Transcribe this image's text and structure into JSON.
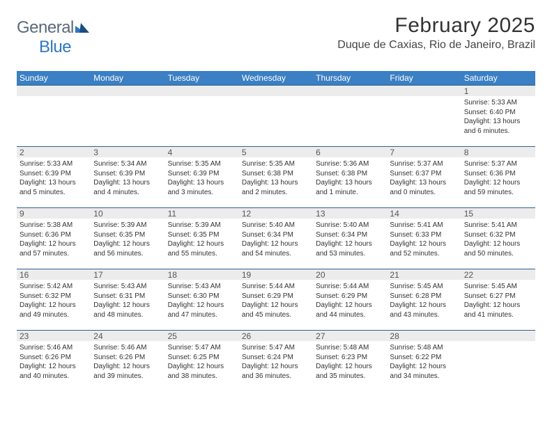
{
  "logo": {
    "general": "General",
    "blue": "Blue"
  },
  "title": "February 2025",
  "location": "Duque de Caxias, Rio de Janeiro, Brazil",
  "colors": {
    "header_bg": "#3b7fc4",
    "header_text": "#ffffff",
    "border": "#2e5f8f",
    "daynum_bg": "#ececec",
    "logo_gray": "#5a6a7a",
    "logo_blue": "#2e78c0"
  },
  "dayNames": [
    "Sunday",
    "Monday",
    "Tuesday",
    "Wednesday",
    "Thursday",
    "Friday",
    "Saturday"
  ],
  "weeks": [
    [
      {
        "n": "",
        "sr": "",
        "ss": "",
        "dl": ""
      },
      {
        "n": "",
        "sr": "",
        "ss": "",
        "dl": ""
      },
      {
        "n": "",
        "sr": "",
        "ss": "",
        "dl": ""
      },
      {
        "n": "",
        "sr": "",
        "ss": "",
        "dl": ""
      },
      {
        "n": "",
        "sr": "",
        "ss": "",
        "dl": ""
      },
      {
        "n": "",
        "sr": "",
        "ss": "",
        "dl": ""
      },
      {
        "n": "1",
        "sr": "Sunrise: 5:33 AM",
        "ss": "Sunset: 6:40 PM",
        "dl": "Daylight: 13 hours and 6 minutes."
      }
    ],
    [
      {
        "n": "2",
        "sr": "Sunrise: 5:33 AM",
        "ss": "Sunset: 6:39 PM",
        "dl": "Daylight: 13 hours and 5 minutes."
      },
      {
        "n": "3",
        "sr": "Sunrise: 5:34 AM",
        "ss": "Sunset: 6:39 PM",
        "dl": "Daylight: 13 hours and 4 minutes."
      },
      {
        "n": "4",
        "sr": "Sunrise: 5:35 AM",
        "ss": "Sunset: 6:39 PM",
        "dl": "Daylight: 13 hours and 3 minutes."
      },
      {
        "n": "5",
        "sr": "Sunrise: 5:35 AM",
        "ss": "Sunset: 6:38 PM",
        "dl": "Daylight: 13 hours and 2 minutes."
      },
      {
        "n": "6",
        "sr": "Sunrise: 5:36 AM",
        "ss": "Sunset: 6:38 PM",
        "dl": "Daylight: 13 hours and 1 minute."
      },
      {
        "n": "7",
        "sr": "Sunrise: 5:37 AM",
        "ss": "Sunset: 6:37 PM",
        "dl": "Daylight: 13 hours and 0 minutes."
      },
      {
        "n": "8",
        "sr": "Sunrise: 5:37 AM",
        "ss": "Sunset: 6:36 PM",
        "dl": "Daylight: 12 hours and 59 minutes."
      }
    ],
    [
      {
        "n": "9",
        "sr": "Sunrise: 5:38 AM",
        "ss": "Sunset: 6:36 PM",
        "dl": "Daylight: 12 hours and 57 minutes."
      },
      {
        "n": "10",
        "sr": "Sunrise: 5:39 AM",
        "ss": "Sunset: 6:35 PM",
        "dl": "Daylight: 12 hours and 56 minutes."
      },
      {
        "n": "11",
        "sr": "Sunrise: 5:39 AM",
        "ss": "Sunset: 6:35 PM",
        "dl": "Daylight: 12 hours and 55 minutes."
      },
      {
        "n": "12",
        "sr": "Sunrise: 5:40 AM",
        "ss": "Sunset: 6:34 PM",
        "dl": "Daylight: 12 hours and 54 minutes."
      },
      {
        "n": "13",
        "sr": "Sunrise: 5:40 AM",
        "ss": "Sunset: 6:34 PM",
        "dl": "Daylight: 12 hours and 53 minutes."
      },
      {
        "n": "14",
        "sr": "Sunrise: 5:41 AM",
        "ss": "Sunset: 6:33 PM",
        "dl": "Daylight: 12 hours and 52 minutes."
      },
      {
        "n": "15",
        "sr": "Sunrise: 5:41 AM",
        "ss": "Sunset: 6:32 PM",
        "dl": "Daylight: 12 hours and 50 minutes."
      }
    ],
    [
      {
        "n": "16",
        "sr": "Sunrise: 5:42 AM",
        "ss": "Sunset: 6:32 PM",
        "dl": "Daylight: 12 hours and 49 minutes."
      },
      {
        "n": "17",
        "sr": "Sunrise: 5:43 AM",
        "ss": "Sunset: 6:31 PM",
        "dl": "Daylight: 12 hours and 48 minutes."
      },
      {
        "n": "18",
        "sr": "Sunrise: 5:43 AM",
        "ss": "Sunset: 6:30 PM",
        "dl": "Daylight: 12 hours and 47 minutes."
      },
      {
        "n": "19",
        "sr": "Sunrise: 5:44 AM",
        "ss": "Sunset: 6:29 PM",
        "dl": "Daylight: 12 hours and 45 minutes."
      },
      {
        "n": "20",
        "sr": "Sunrise: 5:44 AM",
        "ss": "Sunset: 6:29 PM",
        "dl": "Daylight: 12 hours and 44 minutes."
      },
      {
        "n": "21",
        "sr": "Sunrise: 5:45 AM",
        "ss": "Sunset: 6:28 PM",
        "dl": "Daylight: 12 hours and 43 minutes."
      },
      {
        "n": "22",
        "sr": "Sunrise: 5:45 AM",
        "ss": "Sunset: 6:27 PM",
        "dl": "Daylight: 12 hours and 41 minutes."
      }
    ],
    [
      {
        "n": "23",
        "sr": "Sunrise: 5:46 AM",
        "ss": "Sunset: 6:26 PM",
        "dl": "Daylight: 12 hours and 40 minutes."
      },
      {
        "n": "24",
        "sr": "Sunrise: 5:46 AM",
        "ss": "Sunset: 6:26 PM",
        "dl": "Daylight: 12 hours and 39 minutes."
      },
      {
        "n": "25",
        "sr": "Sunrise: 5:47 AM",
        "ss": "Sunset: 6:25 PM",
        "dl": "Daylight: 12 hours and 38 minutes."
      },
      {
        "n": "26",
        "sr": "Sunrise: 5:47 AM",
        "ss": "Sunset: 6:24 PM",
        "dl": "Daylight: 12 hours and 36 minutes."
      },
      {
        "n": "27",
        "sr": "Sunrise: 5:48 AM",
        "ss": "Sunset: 6:23 PM",
        "dl": "Daylight: 12 hours and 35 minutes."
      },
      {
        "n": "28",
        "sr": "Sunrise: 5:48 AM",
        "ss": "Sunset: 6:22 PM",
        "dl": "Daylight: 12 hours and 34 minutes."
      },
      {
        "n": "",
        "sr": "",
        "ss": "",
        "dl": ""
      }
    ]
  ]
}
